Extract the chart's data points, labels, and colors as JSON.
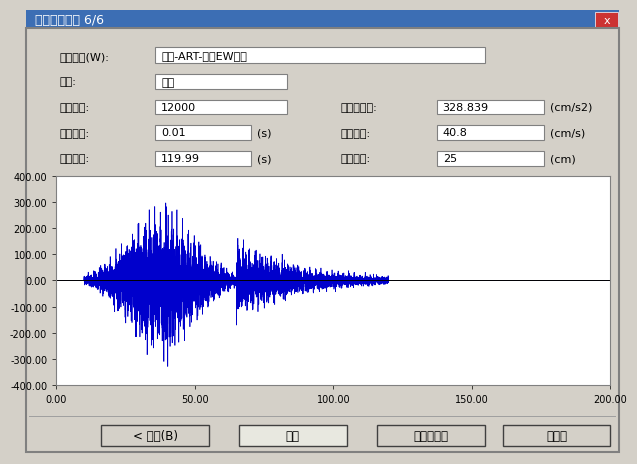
{
  "title": "地震波の情報 6/6",
  "title_bg": "#3c6eb4",
  "dialog_bg": "#d4d0c8",
  "field_bg": "#ffffff",
  "field_border": "#808080",
  "labels_left": [
    "地震波名(W):",
    "種別:",
    "データ数:",
    "時間間隔:",
    "継続時間:"
  ],
  "values_left": [
    "極稀-ART-八戸EW位相",
    "共通",
    "12000",
    "0.01",
    "119.99"
  ],
  "units_left": [
    "",
    "",
    "",
    "(s)",
    "(s)"
  ],
  "labels_right": [
    "最大加速度:",
    "最大速度:",
    "最大変位:"
  ],
  "values_right": [
    "328.839",
    "40.8",
    "25"
  ],
  "units_right": [
    "(cm/s2)",
    "(cm/s)",
    "(cm)"
  ],
  "plot_xlim": [
    0,
    200
  ],
  "plot_ylim": [
    -400,
    400
  ],
  "plot_xticks": [
    0,
    50,
    100,
    150,
    200
  ],
  "plot_yticks": [
    -400,
    -300,
    -200,
    -100,
    0,
    100,
    200,
    300,
    400
  ],
  "plot_xtick_labels": [
    "0.00",
    "50.00",
    "100.00",
    "150.00",
    "200.00"
  ],
  "plot_ytick_labels": [
    "-400.00",
    "-300.00",
    "-200.00",
    "-100.00",
    "0.00",
    "100.00",
    "200.00",
    "300.00",
    "400.00"
  ],
  "wave_color": "#0000cc",
  "bg_color": "#d4d0c8",
  "buttons": [
    "< 戻る(B)",
    "完了",
    "キャンセル",
    "ヘルプ"
  ],
  "button_active": "完了"
}
